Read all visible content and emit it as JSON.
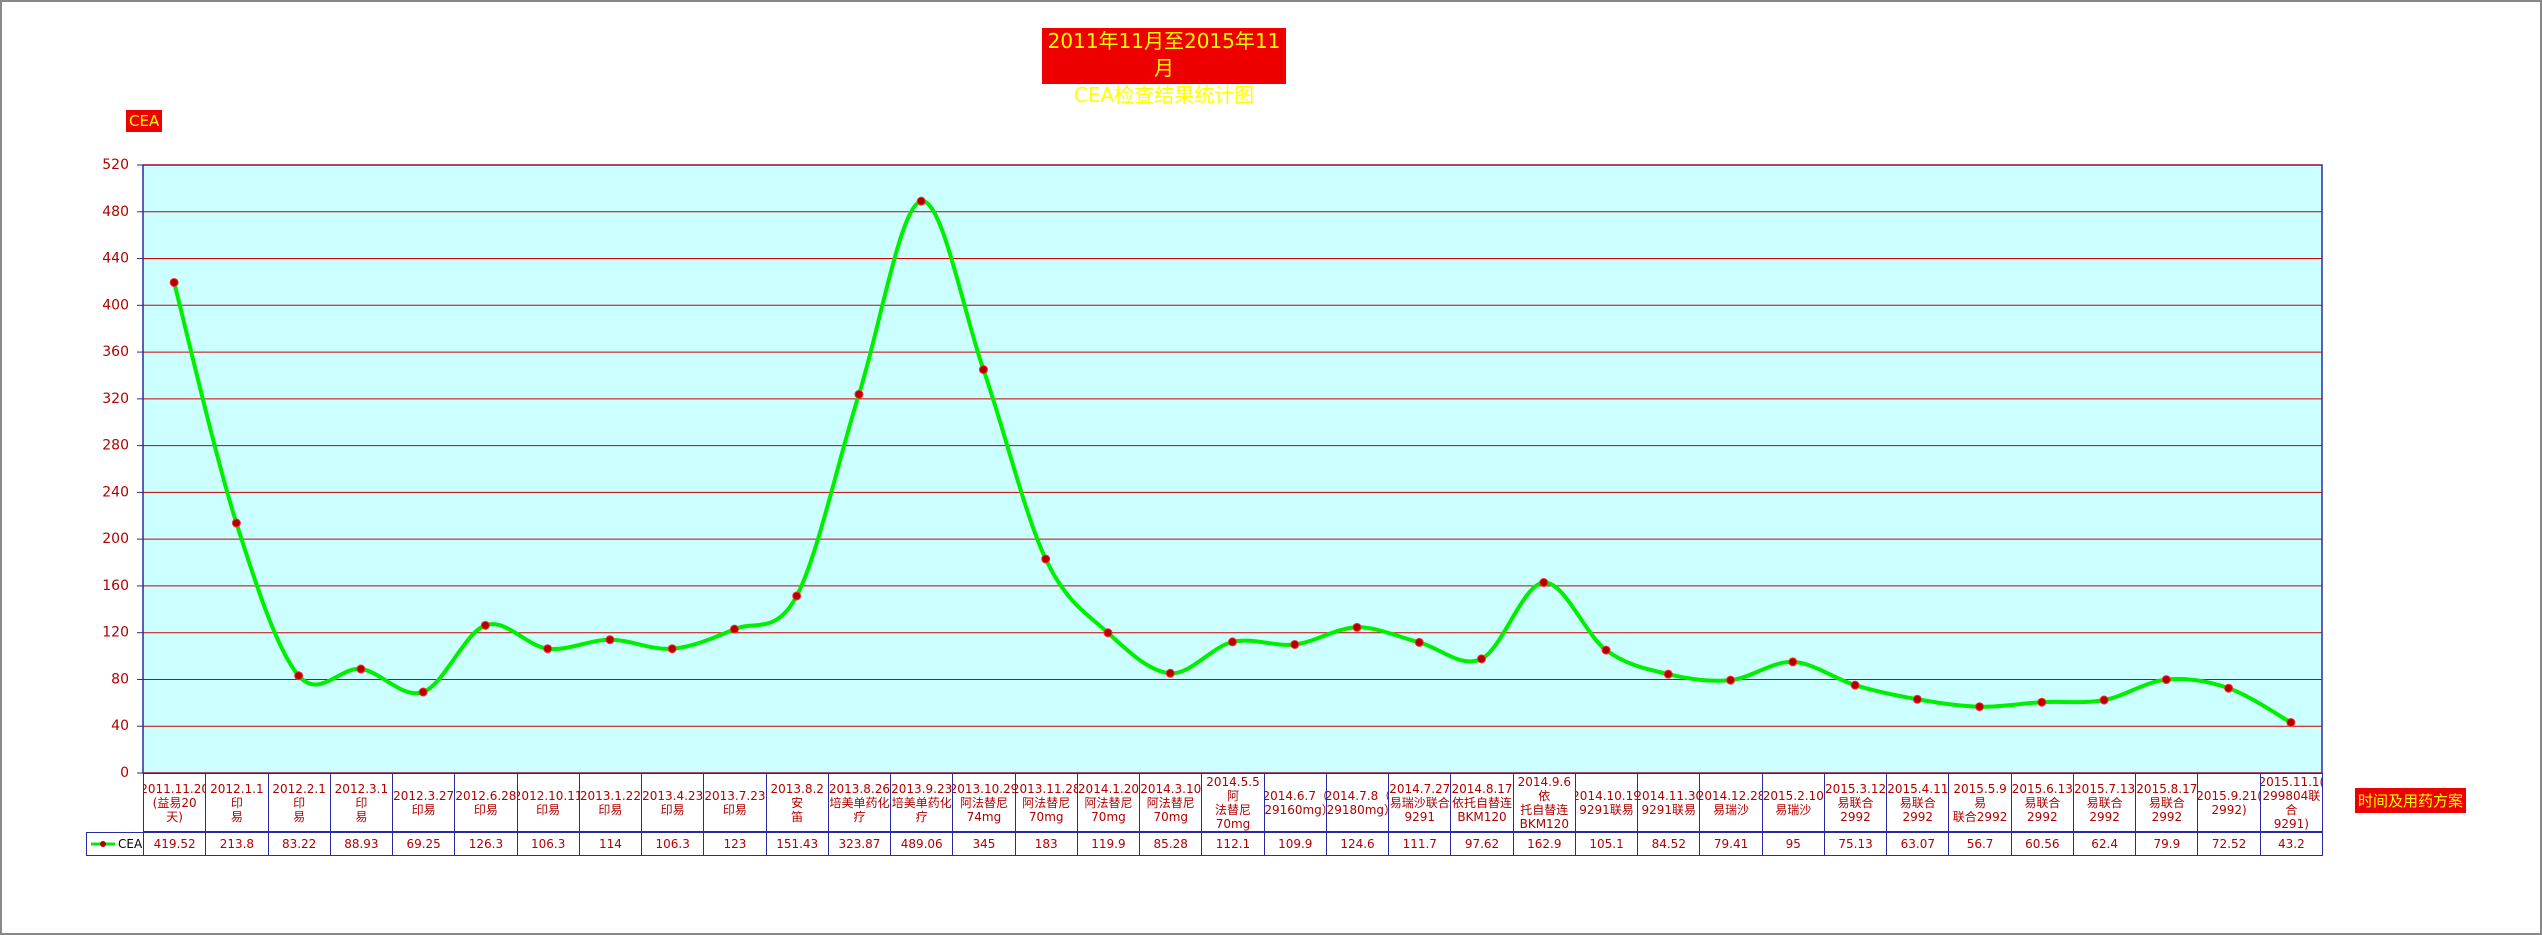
{
  "chart_data": {
    "type": "line",
    "title": "2011年11月至2015年11月\nCEA检查结果统计图",
    "y_label": "CEA",
    "x_label": "时间及用药方案",
    "categories": [
      "2011.11.20\n(益易20\n天)",
      "2012.1.1印\n易",
      "2012.2.1印\n易",
      "2012.3.1印\n易",
      "2012.3.27\n印易",
      "2012.6.28\n印易",
      "2012.10.11\n印易",
      "2013.1.22\n印易",
      "2013.4.23\n印易",
      "2013.7.23\n印易",
      "2013.8.2安\n笛",
      "2013.8.26\n培美单药化\n疗",
      "2013.9.23\n培美单药化\n疗",
      "2013.10.29\n阿法替尼\n74mg",
      "2013.11.28\n阿法替尼\n70mg",
      "2014.1.20\n阿法替尼\n70mg",
      "2014.3.10\n阿法替尼\n70mg",
      "2014.5.5阿\n法替尼70mg",
      "2014.6.7（\n929160mg）",
      "2014.7.8（\n929180mg）",
      "2014.7.27\n易瑞沙联合\n9291",
      "2014.8.17\n依托自替连\nBKM120",
      "2014.9.6依\n托自替连\nBKM120",
      "2014.10.19\n9291联易",
      "2014.11.30\n9291联易",
      "2014.12.28\n易瑞沙",
      "2015.2.10\n易瑞沙",
      "2015.3.12\n易联合2992",
      "2015.4.11\n易联合2992",
      "2015.5.9易\n联合2992",
      "2015.6.13\n易联合2992",
      "2015.7.13\n易联合2992",
      "2015.8.17\n易联合2992",
      "2015.9.21(\n2992)",
      "2015.11.1(\n299804联合\n9291)"
    ],
    "series": [
      {
        "name": "CEA",
        "color": "#00ee00",
        "marker_color": "#b00000",
        "values": [
          419.52,
          213.8,
          83.22,
          88.93,
          69.25,
          126.3,
          106.3,
          114,
          106.3,
          123,
          151.43,
          323.87,
          489.06,
          345,
          183,
          119.9,
          85.28,
          112.1,
          109.9,
          124.6,
          111.7,
          97.62,
          162.9,
          105.1,
          84.52,
          79.41,
          95,
          75.13,
          63.07,
          56.7,
          60.56,
          62.4,
          79.9,
          72.52,
          43.2
        ]
      }
    ],
    "ylim": [
      0,
      520
    ],
    "yticks": [
      0,
      40,
      80,
      120,
      160,
      200,
      240,
      280,
      320,
      360,
      400,
      440,
      480,
      520
    ],
    "grid": true,
    "smooth": true,
    "data_table": true
  }
}
